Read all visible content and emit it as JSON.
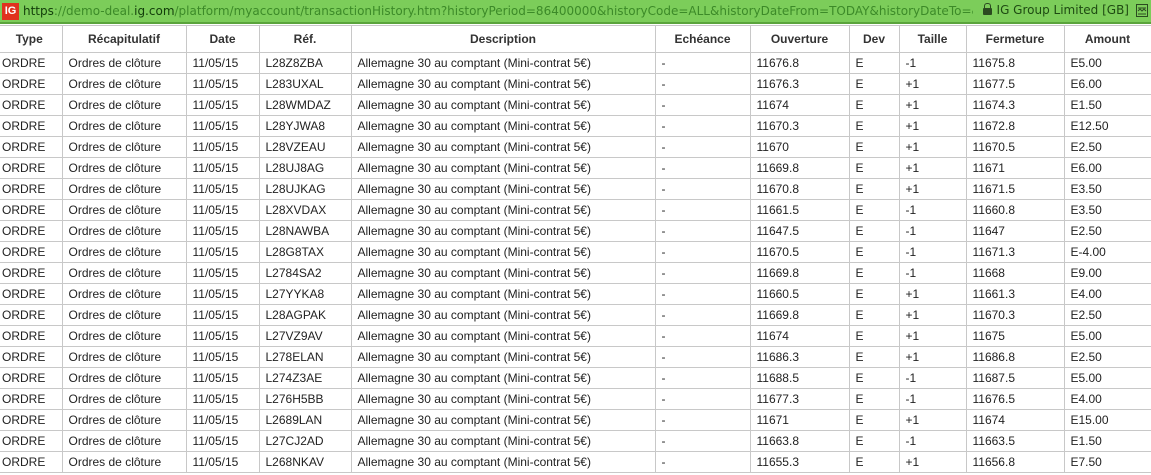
{
  "browser": {
    "url_scheme": "https",
    "url_prefix": "://demo-deal.",
    "url_domain": "ig.com",
    "url_rest": "/platform/myaccount/transactionHistory.htm?historyPeriod=86400000&historyCode=ALL&historyDateFrom=TODAY&historyDateTo=&transactionHistoryP",
    "certificate": "IG Group Limited [GB]",
    "logo_text": "IG",
    "icons": [
      "ig-logo-icon",
      "lock-icon",
      "reader-view-icon"
    ],
    "accent": "#7ccd5a"
  },
  "table": {
    "headers": [
      "Type",
      "Récapitulatif",
      "Date",
      "Réf.",
      "Description",
      "Echéance",
      "Ouverture",
      "Dev",
      "Taille",
      "Fermeture",
      "Amount"
    ],
    "rows": [
      [
        "ORDRE",
        "Ordres de clôture",
        "11/05/15",
        "L28Z8ZBA",
        "Allemagne 30 au comptant (Mini-contrat 5€)",
        "-",
        "11676.8",
        "E",
        "-1",
        "11675.8",
        "E5.00"
      ],
      [
        "ORDRE",
        "Ordres de clôture",
        "11/05/15",
        "L283UXAL",
        "Allemagne 30 au comptant (Mini-contrat 5€)",
        "-",
        "11676.3",
        "E",
        "+1",
        "11677.5",
        "E6.00"
      ],
      [
        "ORDRE",
        "Ordres de clôture",
        "11/05/15",
        "L28WMDAZ",
        "Allemagne 30 au comptant (Mini-contrat 5€)",
        "-",
        "11674",
        "E",
        "+1",
        "11674.3",
        "E1.50"
      ],
      [
        "ORDRE",
        "Ordres de clôture",
        "11/05/15",
        "L28YJWA8",
        "Allemagne 30 au comptant (Mini-contrat 5€)",
        "-",
        "11670.3",
        "E",
        "+1",
        "11672.8",
        "E12.50"
      ],
      [
        "ORDRE",
        "Ordres de clôture",
        "11/05/15",
        "L28VZEAU",
        "Allemagne 30 au comptant (Mini-contrat 5€)",
        "-",
        "11670",
        "E",
        "+1",
        "11670.5",
        "E2.50"
      ],
      [
        "ORDRE",
        "Ordres de clôture",
        "11/05/15",
        "L28UJ8AG",
        "Allemagne 30 au comptant (Mini-contrat 5€)",
        "-",
        "11669.8",
        "E",
        "+1",
        "11671",
        "E6.00"
      ],
      [
        "ORDRE",
        "Ordres de clôture",
        "11/05/15",
        "L28UJKAG",
        "Allemagne 30 au comptant (Mini-contrat 5€)",
        "-",
        "11670.8",
        "E",
        "+1",
        "11671.5",
        "E3.50"
      ],
      [
        "ORDRE",
        "Ordres de clôture",
        "11/05/15",
        "L28XVDAX",
        "Allemagne 30 au comptant (Mini-contrat 5€)",
        "-",
        "11661.5",
        "E",
        "-1",
        "11660.8",
        "E3.50"
      ],
      [
        "ORDRE",
        "Ordres de clôture",
        "11/05/15",
        "L28NAWBA",
        "Allemagne 30 au comptant (Mini-contrat 5€)",
        "-",
        "11647.5",
        "E",
        "-1",
        "11647",
        "E2.50"
      ],
      [
        "ORDRE",
        "Ordres de clôture",
        "11/05/15",
        "L28G8TAX",
        "Allemagne 30 au comptant (Mini-contrat 5€)",
        "-",
        "11670.5",
        "E",
        "-1",
        "11671.3",
        "E-4.00"
      ],
      [
        "ORDRE",
        "Ordres de clôture",
        "11/05/15",
        "L2784SA2",
        "Allemagne 30 au comptant (Mini-contrat 5€)",
        "-",
        "11669.8",
        "E",
        "-1",
        "11668",
        "E9.00"
      ],
      [
        "ORDRE",
        "Ordres de clôture",
        "11/05/15",
        "L27YYKA8",
        "Allemagne 30 au comptant (Mini-contrat 5€)",
        "-",
        "11660.5",
        "E",
        "+1",
        "11661.3",
        "E4.00"
      ],
      [
        "ORDRE",
        "Ordres de clôture",
        "11/05/15",
        "L28AGPAK",
        "Allemagne 30 au comptant (Mini-contrat 5€)",
        "-",
        "11669.8",
        "E",
        "+1",
        "11670.3",
        "E2.50"
      ],
      [
        "ORDRE",
        "Ordres de clôture",
        "11/05/15",
        "L27VZ9AV",
        "Allemagne 30 au comptant (Mini-contrat 5€)",
        "-",
        "11674",
        "E",
        "+1",
        "11675",
        "E5.00"
      ],
      [
        "ORDRE",
        "Ordres de clôture",
        "11/05/15",
        "L278ELAN",
        "Allemagne 30 au comptant (Mini-contrat 5€)",
        "-",
        "11686.3",
        "E",
        "+1",
        "11686.8",
        "E2.50"
      ],
      [
        "ORDRE",
        "Ordres de clôture",
        "11/05/15",
        "L274Z3AE",
        "Allemagne 30 au comptant (Mini-contrat 5€)",
        "-",
        "11688.5",
        "E",
        "-1",
        "11687.5",
        "E5.00"
      ],
      [
        "ORDRE",
        "Ordres de clôture",
        "11/05/15",
        "L276H5BB",
        "Allemagne 30 au comptant (Mini-contrat 5€)",
        "-",
        "11677.3",
        "E",
        "-1",
        "11676.5",
        "E4.00"
      ],
      [
        "ORDRE",
        "Ordres de clôture",
        "11/05/15",
        "L2689LAN",
        "Allemagne 30 au comptant (Mini-contrat 5€)",
        "-",
        "11671",
        "E",
        "+1",
        "11674",
        "E15.00"
      ],
      [
        "ORDRE",
        "Ordres de clôture",
        "11/05/15",
        "L27CJ2AD",
        "Allemagne 30 au comptant (Mini-contrat 5€)",
        "-",
        "11663.8",
        "E",
        "-1",
        "11663.5",
        "E1.50"
      ],
      [
        "ORDRE",
        "Ordres de clôture",
        "11/05/15",
        "L268NKAV",
        "Allemagne 30 au comptant (Mini-contrat 5€)",
        "-",
        "11655.3",
        "E",
        "+1",
        "11656.8",
        "E7.50"
      ]
    ]
  }
}
